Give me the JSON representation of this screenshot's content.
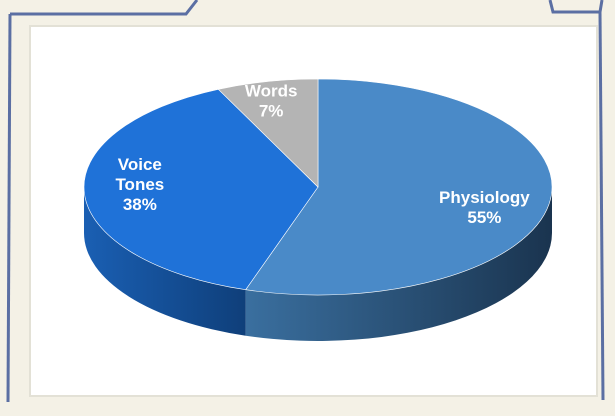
{
  "chart_data": {
    "type": "pie",
    "slices": [
      {
        "label": "Physiology",
        "value": 55,
        "value_text": "55%",
        "color": "#4a8ac8",
        "side_color": "#24517a",
        "text_color": "#ffffff"
      },
      {
        "label": "Voice Tones",
        "value": 38,
        "value_text": "38%",
        "color": "#1f72d8",
        "side_color": "#114a90",
        "text_color": "#ffffff"
      },
      {
        "label": "Words",
        "value": 7,
        "value_text": "7%",
        "color": "#b4b4b4",
        "side_color": "#7a7a7a",
        "text_color": "#ffffff"
      }
    ]
  },
  "colors": {
    "background": "#f4f1e6",
    "panel": "#ffffff",
    "frame": "#5b6fa3",
    "panel_border": "#e3e1d6"
  }
}
